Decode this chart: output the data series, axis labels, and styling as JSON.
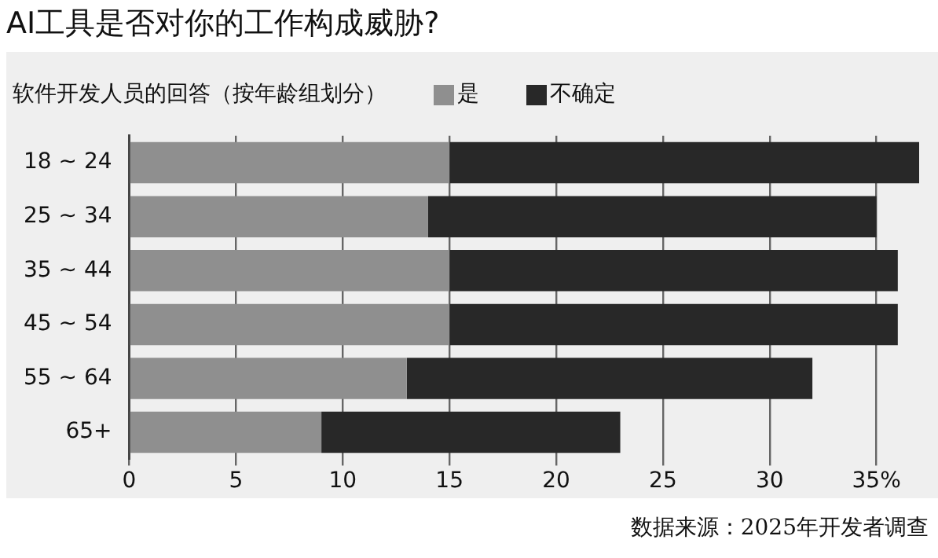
{
  "chart_data": {
    "type": "bar",
    "orientation": "horizontal",
    "stacked": true,
    "title": "AI工具是否对你的工作构成威胁?",
    "subtitle": "软件开发人员的回答（按年龄组划分）",
    "categories": [
      "18 ~ 24",
      "25 ~ 34",
      "35 ~ 44",
      "45 ~ 54",
      "55 ~ 64",
      "65+"
    ],
    "series": [
      {
        "name": "是",
        "color": "#8f8f8f",
        "values": [
          15,
          14,
          15,
          15,
          13,
          9
        ]
      },
      {
        "name": "不确定",
        "color": "#282828",
        "values": [
          22,
          21,
          21,
          21,
          19,
          14
        ]
      }
    ],
    "xlim": [
      0,
      37
    ],
    "xticks": [
      0,
      5,
      10,
      15,
      20,
      25,
      30,
      {
        "value": 35,
        "label": "35%"
      }
    ],
    "grid": "x",
    "legend": "top left",
    "annotations": [
      "数据来源：2025年开发者调查"
    ]
  }
}
